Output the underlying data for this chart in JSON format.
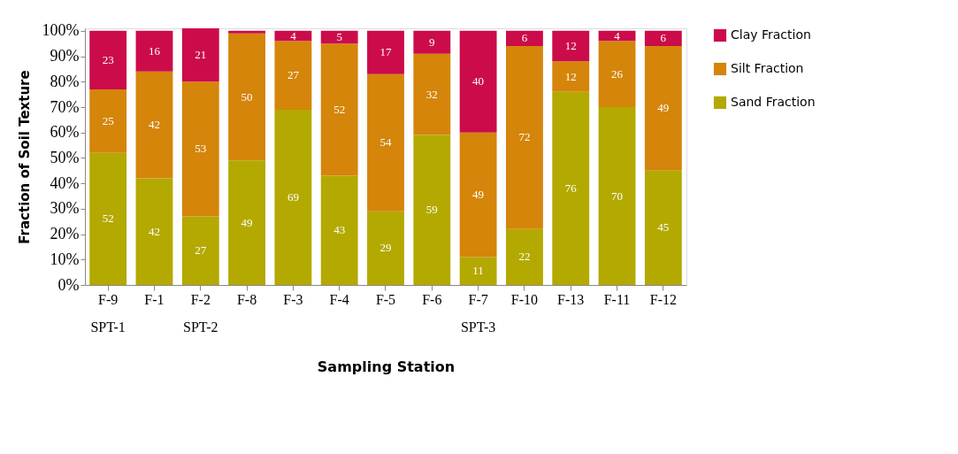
{
  "chart_data": {
    "type": "bar",
    "stacked": true,
    "xlabel": "Sampling Station",
    "ylabel": "Fraction of Soil Texture",
    "categories": [
      "F-9",
      "F-1",
      "F-2",
      "F-8",
      "F-3",
      "F-4",
      "F-5",
      "F-6",
      "F-7",
      "F-10",
      "F-13",
      "F-11",
      "F-12"
    ],
    "ylim": [
      0,
      101
    ],
    "yticks": [
      {
        "value": 0,
        "label": "0%"
      },
      {
        "value": 10,
        "label": "10%"
      },
      {
        "value": 20,
        "label": "20%"
      },
      {
        "value": 30,
        "label": "30%"
      },
      {
        "value": 40,
        "label": "40%"
      },
      {
        "value": 50,
        "label": "50%"
      },
      {
        "value": 60,
        "label": "60%"
      },
      {
        "value": 70,
        "label": "70%"
      },
      {
        "value": 80,
        "label": "80%"
      },
      {
        "value": 90,
        "label": "90%"
      },
      {
        "value": 100,
        "label": "100%"
      }
    ],
    "series": [
      {
        "name": "Sand Fraction",
        "color": "#b3a900",
        "values": [
          52,
          42,
          27,
          49,
          69,
          43,
          29,
          59,
          11,
          22,
          76,
          70,
          45
        ],
        "value_labels": [
          "52",
          "42",
          "27",
          "49",
          "69",
          "43",
          "29",
          "59",
          "11",
          "22",
          "76",
          "70",
          "45"
        ]
      },
      {
        "name": "Silt Fraction",
        "color": "#d4850a",
        "values": [
          25,
          42,
          53,
          50,
          27,
          52,
          54,
          32,
          49,
          72,
          12,
          26,
          49
        ],
        "value_labels": [
          "25",
          "42",
          "53",
          "50",
          "27",
          "52",
          "54",
          "32",
          "49",
          "72",
          "12",
          "26",
          "49"
        ]
      },
      {
        "name": "Clay Fraction",
        "color": "#cc0c4a",
        "values": [
          23,
          16,
          21,
          1,
          4,
          5,
          17,
          9,
          40,
          6,
          12,
          4,
          6
        ],
        "value_labels": [
          "23",
          "16",
          "21",
          null,
          "4",
          "5",
          "17",
          "9",
          "40",
          "6",
          "12",
          "4",
          "6"
        ]
      }
    ],
    "legend": "right",
    "grid": false,
    "annotations": [
      "SPT-1",
      "SPT-2",
      "SPT-3"
    ]
  }
}
